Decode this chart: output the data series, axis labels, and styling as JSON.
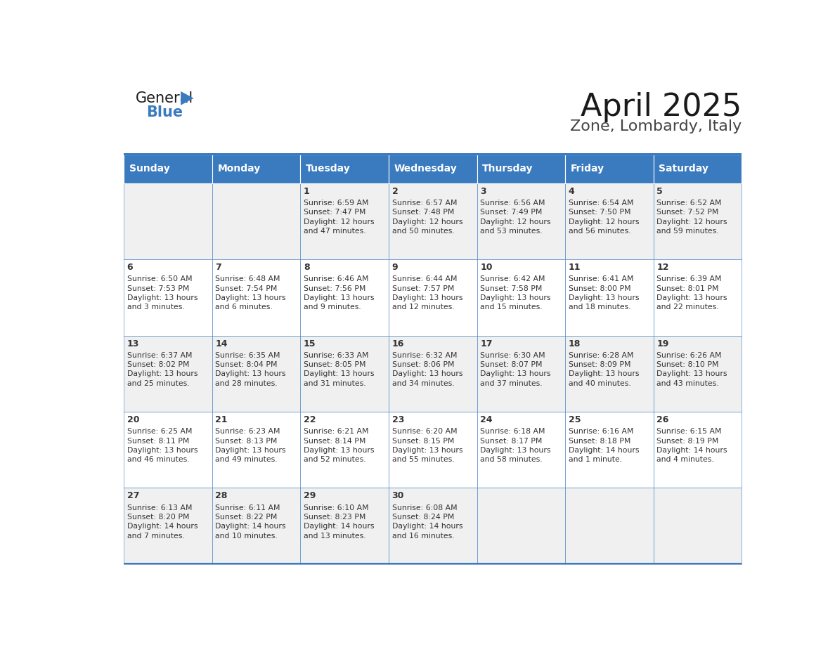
{
  "title": "April 2025",
  "subtitle": "Zone, Lombardy, Italy",
  "header_color": "#3a7abf",
  "header_text_color": "#ffffff",
  "cell_bg_color": "#ffffff",
  "alt_cell_bg_color": "#f0f0f0",
  "text_color": "#333333",
  "border_color": "#3a7abf",
  "days_of_week": [
    "Sunday",
    "Monday",
    "Tuesday",
    "Wednesday",
    "Thursday",
    "Friday",
    "Saturday"
  ],
  "weeks": [
    [
      {
        "day": "",
        "sunrise": "",
        "sunset": "",
        "daylight": ""
      },
      {
        "day": "",
        "sunrise": "",
        "sunset": "",
        "daylight": ""
      },
      {
        "day": "1",
        "sunrise": "Sunrise: 6:59 AM",
        "sunset": "Sunset: 7:47 PM",
        "daylight": "Daylight: 12 hours\nand 47 minutes."
      },
      {
        "day": "2",
        "sunrise": "Sunrise: 6:57 AM",
        "sunset": "Sunset: 7:48 PM",
        "daylight": "Daylight: 12 hours\nand 50 minutes."
      },
      {
        "day": "3",
        "sunrise": "Sunrise: 6:56 AM",
        "sunset": "Sunset: 7:49 PM",
        "daylight": "Daylight: 12 hours\nand 53 minutes."
      },
      {
        "day": "4",
        "sunrise": "Sunrise: 6:54 AM",
        "sunset": "Sunset: 7:50 PM",
        "daylight": "Daylight: 12 hours\nand 56 minutes."
      },
      {
        "day": "5",
        "sunrise": "Sunrise: 6:52 AM",
        "sunset": "Sunset: 7:52 PM",
        "daylight": "Daylight: 12 hours\nand 59 minutes."
      }
    ],
    [
      {
        "day": "6",
        "sunrise": "Sunrise: 6:50 AM",
        "sunset": "Sunset: 7:53 PM",
        "daylight": "Daylight: 13 hours\nand 3 minutes."
      },
      {
        "day": "7",
        "sunrise": "Sunrise: 6:48 AM",
        "sunset": "Sunset: 7:54 PM",
        "daylight": "Daylight: 13 hours\nand 6 minutes."
      },
      {
        "day": "8",
        "sunrise": "Sunrise: 6:46 AM",
        "sunset": "Sunset: 7:56 PM",
        "daylight": "Daylight: 13 hours\nand 9 minutes."
      },
      {
        "day": "9",
        "sunrise": "Sunrise: 6:44 AM",
        "sunset": "Sunset: 7:57 PM",
        "daylight": "Daylight: 13 hours\nand 12 minutes."
      },
      {
        "day": "10",
        "sunrise": "Sunrise: 6:42 AM",
        "sunset": "Sunset: 7:58 PM",
        "daylight": "Daylight: 13 hours\nand 15 minutes."
      },
      {
        "day": "11",
        "sunrise": "Sunrise: 6:41 AM",
        "sunset": "Sunset: 8:00 PM",
        "daylight": "Daylight: 13 hours\nand 18 minutes."
      },
      {
        "day": "12",
        "sunrise": "Sunrise: 6:39 AM",
        "sunset": "Sunset: 8:01 PM",
        "daylight": "Daylight: 13 hours\nand 22 minutes."
      }
    ],
    [
      {
        "day": "13",
        "sunrise": "Sunrise: 6:37 AM",
        "sunset": "Sunset: 8:02 PM",
        "daylight": "Daylight: 13 hours\nand 25 minutes."
      },
      {
        "day": "14",
        "sunrise": "Sunrise: 6:35 AM",
        "sunset": "Sunset: 8:04 PM",
        "daylight": "Daylight: 13 hours\nand 28 minutes."
      },
      {
        "day": "15",
        "sunrise": "Sunrise: 6:33 AM",
        "sunset": "Sunset: 8:05 PM",
        "daylight": "Daylight: 13 hours\nand 31 minutes."
      },
      {
        "day": "16",
        "sunrise": "Sunrise: 6:32 AM",
        "sunset": "Sunset: 8:06 PM",
        "daylight": "Daylight: 13 hours\nand 34 minutes."
      },
      {
        "day": "17",
        "sunrise": "Sunrise: 6:30 AM",
        "sunset": "Sunset: 8:07 PM",
        "daylight": "Daylight: 13 hours\nand 37 minutes."
      },
      {
        "day": "18",
        "sunrise": "Sunrise: 6:28 AM",
        "sunset": "Sunset: 8:09 PM",
        "daylight": "Daylight: 13 hours\nand 40 minutes."
      },
      {
        "day": "19",
        "sunrise": "Sunrise: 6:26 AM",
        "sunset": "Sunset: 8:10 PM",
        "daylight": "Daylight: 13 hours\nand 43 minutes."
      }
    ],
    [
      {
        "day": "20",
        "sunrise": "Sunrise: 6:25 AM",
        "sunset": "Sunset: 8:11 PM",
        "daylight": "Daylight: 13 hours\nand 46 minutes."
      },
      {
        "day": "21",
        "sunrise": "Sunrise: 6:23 AM",
        "sunset": "Sunset: 8:13 PM",
        "daylight": "Daylight: 13 hours\nand 49 minutes."
      },
      {
        "day": "22",
        "sunrise": "Sunrise: 6:21 AM",
        "sunset": "Sunset: 8:14 PM",
        "daylight": "Daylight: 13 hours\nand 52 minutes."
      },
      {
        "day": "23",
        "sunrise": "Sunrise: 6:20 AM",
        "sunset": "Sunset: 8:15 PM",
        "daylight": "Daylight: 13 hours\nand 55 minutes."
      },
      {
        "day": "24",
        "sunrise": "Sunrise: 6:18 AM",
        "sunset": "Sunset: 8:17 PM",
        "daylight": "Daylight: 13 hours\nand 58 minutes."
      },
      {
        "day": "25",
        "sunrise": "Sunrise: 6:16 AM",
        "sunset": "Sunset: 8:18 PM",
        "daylight": "Daylight: 14 hours\nand 1 minute."
      },
      {
        "day": "26",
        "sunrise": "Sunrise: 6:15 AM",
        "sunset": "Sunset: 8:19 PM",
        "daylight": "Daylight: 14 hours\nand 4 minutes."
      }
    ],
    [
      {
        "day": "27",
        "sunrise": "Sunrise: 6:13 AM",
        "sunset": "Sunset: 8:20 PM",
        "daylight": "Daylight: 14 hours\nand 7 minutes."
      },
      {
        "day": "28",
        "sunrise": "Sunrise: 6:11 AM",
        "sunset": "Sunset: 8:22 PM",
        "daylight": "Daylight: 14 hours\nand 10 minutes."
      },
      {
        "day": "29",
        "sunrise": "Sunrise: 6:10 AM",
        "sunset": "Sunset: 8:23 PM",
        "daylight": "Daylight: 14 hours\nand 13 minutes."
      },
      {
        "day": "30",
        "sunrise": "Sunrise: 6:08 AM",
        "sunset": "Sunset: 8:24 PM",
        "daylight": "Daylight: 14 hours\nand 16 minutes."
      },
      {
        "day": "",
        "sunrise": "",
        "sunset": "",
        "daylight": ""
      },
      {
        "day": "",
        "sunrise": "",
        "sunset": "",
        "daylight": ""
      },
      {
        "day": "",
        "sunrise": "",
        "sunset": "",
        "daylight": ""
      }
    ]
  ],
  "header_font_size": 10,
  "day_font_size": 9,
  "info_font_size": 7.8,
  "title_fontsize": 32,
  "subtitle_fontsize": 16,
  "logo_fontsize": 15
}
